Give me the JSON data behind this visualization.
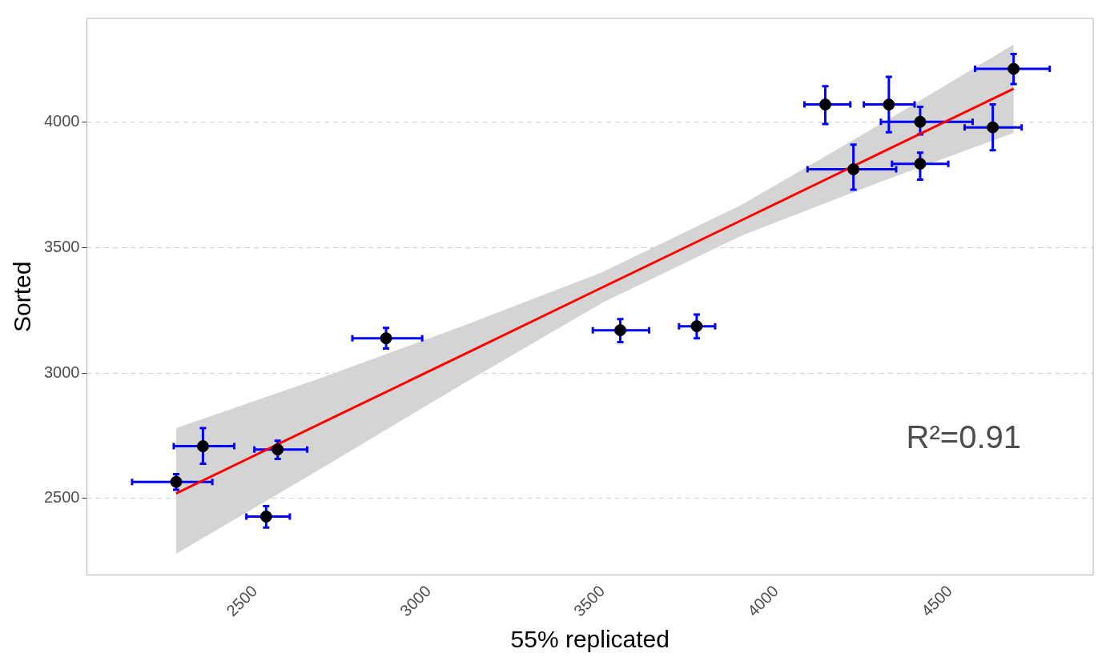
{
  "chart_data": {
    "type": "scatter",
    "xlabel": "55% replicated",
    "ylabel": "Sorted",
    "annotations": [
      "R²=0.91"
    ],
    "xlim": [
      2016,
      4912
    ],
    "ylim": [
      2195,
      4412
    ],
    "xticks": [
      2500,
      3000,
      3500,
      4000,
      4500
    ],
    "yticks": [
      2500,
      3000,
      3500,
      4000
    ],
    "grid": "y",
    "legend": false,
    "series": [
      {
        "color": "#000000",
        "marker": "circle",
        "x": [
          2273,
          2350,
          2565,
          2532,
          2877,
          3551,
          3771,
          4141,
          4324,
          4414,
          4222,
          4414,
          4623,
          4683
        ],
        "values": [
          2566,
          2708,
          2695,
          2428,
          3138,
          3170,
          3186,
          4069,
          4069,
          4000,
          3811,
          3833,
          3978,
          4211
        ],
        "errors": [
          [
            2535,
            2597
          ],
          [
            2638,
            2780
          ],
          [
            2657,
            2730
          ],
          [
            2384,
            2469
          ],
          [
            3097,
            3179
          ],
          [
            3123,
            3214
          ],
          [
            3138,
            3233
          ],
          [
            3991,
            4142
          ],
          [
            3959,
            4179
          ],
          [
            3950,
            4060
          ],
          [
            3730,
            3909
          ],
          [
            3770,
            3877
          ],
          [
            3887,
            4069
          ],
          [
            4151,
            4270
          ]
        ],
        "xerrors": [
          [
            2146,
            2377
          ],
          [
            2266,
            2440
          ],
          [
            2498,
            2650
          ],
          [
            2475,
            2600
          ],
          [
            2780,
            2981
          ],
          [
            3472,
            3634
          ],
          [
            3720,
            3824
          ],
          [
            4081,
            4213
          ],
          [
            4252,
            4398
          ],
          [
            4301,
            4565
          ],
          [
            4090,
            4345
          ],
          [
            4333,
            4495
          ],
          [
            4542,
            4706
          ],
          [
            4572,
            4787
          ]
        ]
      },
      {
        "type": "line",
        "color": "#ff0000",
        "x": [
          2273,
          2700,
          3100,
          3500,
          3900,
          4300,
          4683
        ],
        "values": [
          2520,
          2806,
          3073,
          3341,
          3608,
          3876,
          4132
        ],
        "lower": [
          2280,
          2627,
          2958,
          3280,
          3547,
          3761,
          3956
        ],
        "upper": [
          2780,
          2985,
          3188,
          3402,
          3669,
          3991,
          4308
        ]
      }
    ]
  }
}
